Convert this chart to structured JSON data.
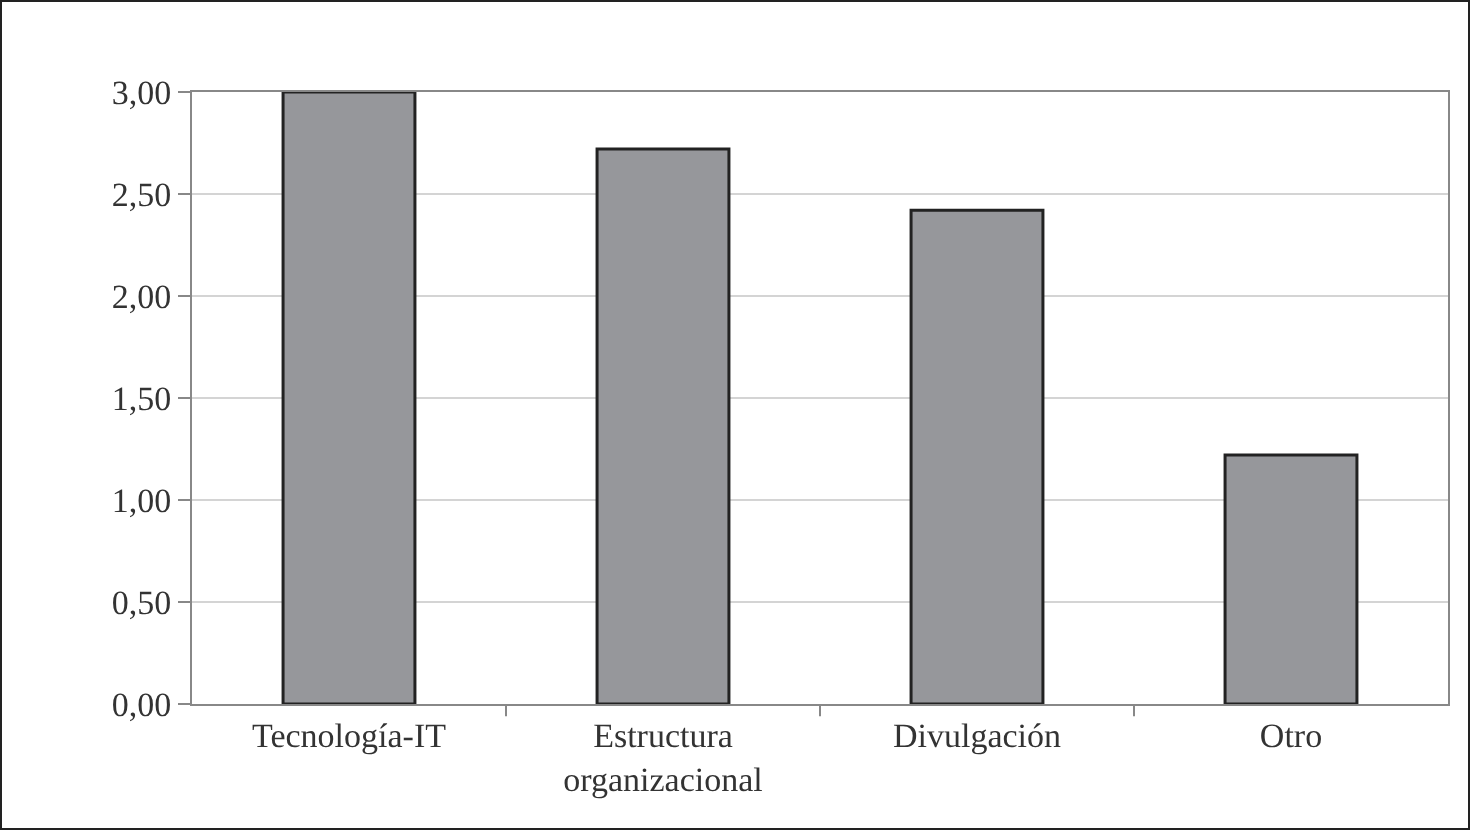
{
  "chart_data": {
    "type": "bar",
    "categories": [
      "Tecnología-IT",
      "Estructura organizacional",
      "Divulgación",
      "Otro"
    ],
    "values": [
      3.0,
      2.72,
      2.42,
      1.22
    ],
    "color": "#96979b",
    "ylim": [
      0,
      3
    ],
    "yticks": [
      {
        "value": 0,
        "label": "0,00"
      },
      {
        "value": 0.5,
        "label": "0,50"
      },
      {
        "value": 1,
        "label": "1,00"
      },
      {
        "value": 1.5,
        "label": "1,50"
      },
      {
        "value": 2,
        "label": "2,00"
      },
      {
        "value": 2.5,
        "label": "2,50"
      },
      {
        "value": 3,
        "label": "3,00"
      }
    ],
    "grid": "y"
  }
}
